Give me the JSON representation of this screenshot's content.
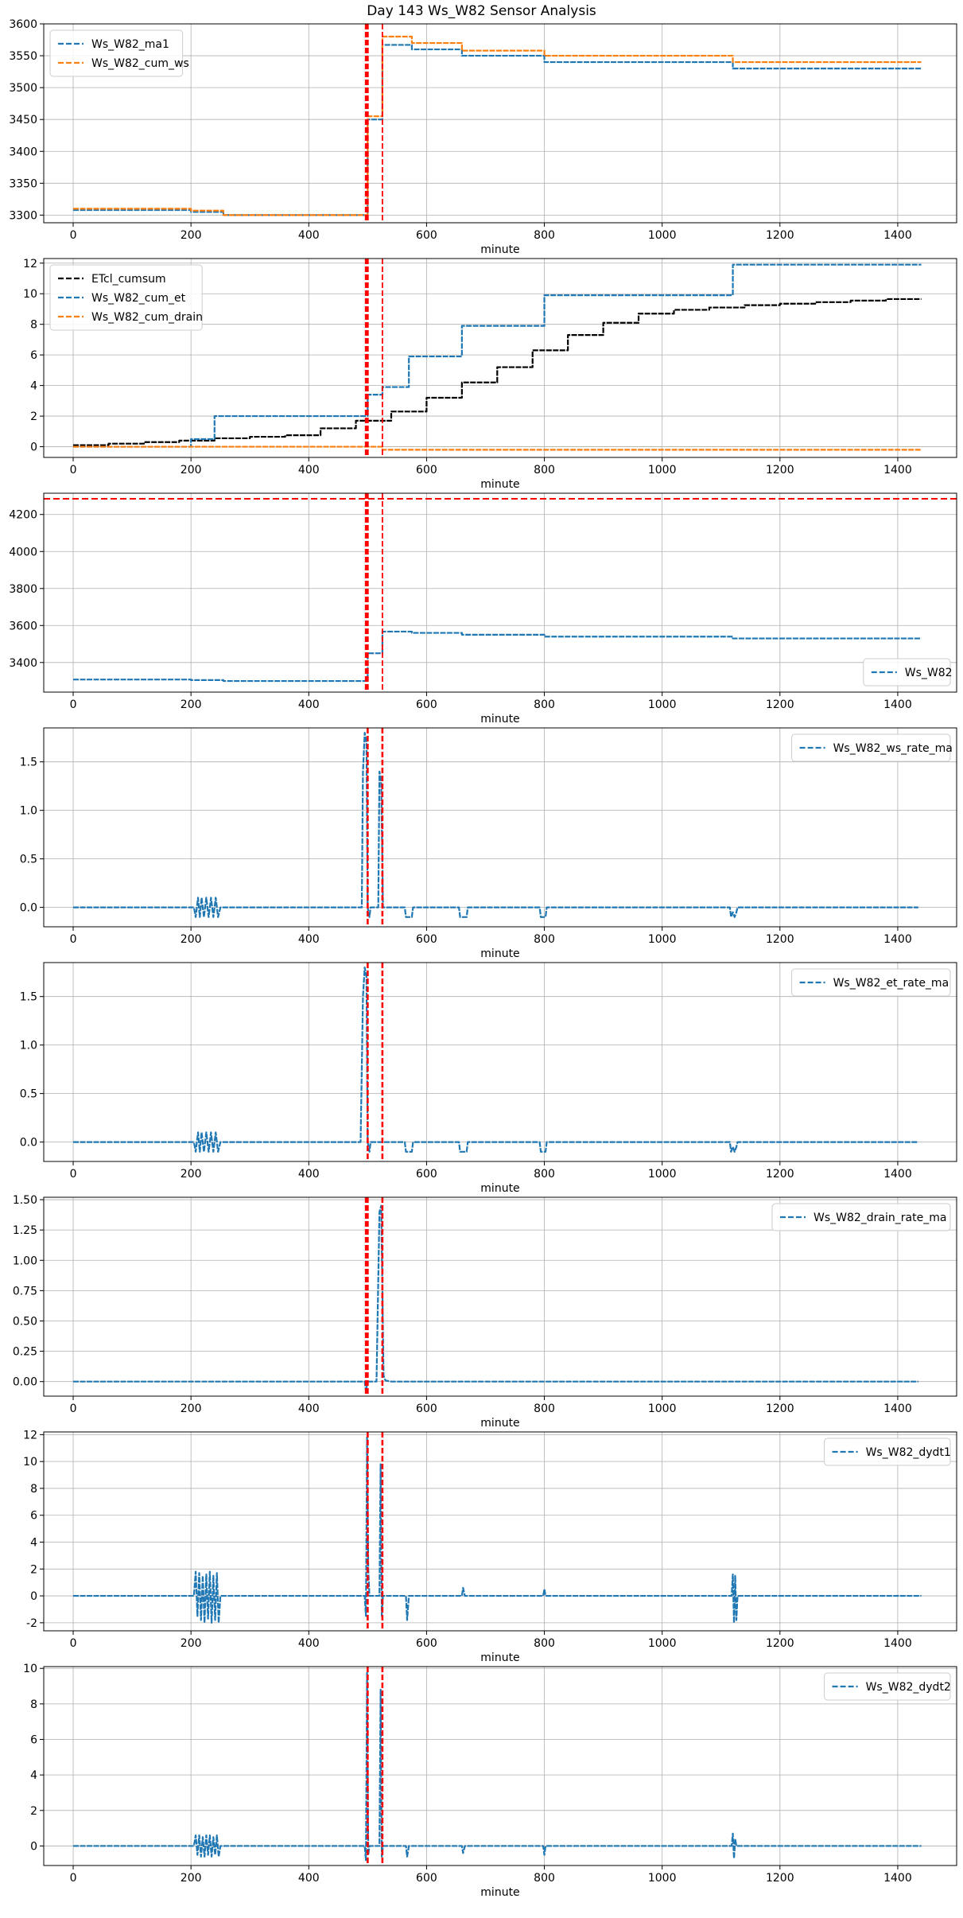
{
  "figure": {
    "title": "Day 143 Ws_W82 Sensor Analysis"
  },
  "colors": {
    "blue": "#1f77b4",
    "orange": "#ff7f0e",
    "black": "#000000",
    "red": "#ff0000",
    "grid": "#b0b0b0"
  },
  "chart_data": [
    {
      "type": "line",
      "xlabel": "minute",
      "ylabel": "",
      "xlim": [
        -50,
        1500
      ],
      "ylim": [
        3288,
        3600
      ],
      "xticks": [
        0,
        200,
        400,
        600,
        800,
        1000,
        1200,
        1400
      ],
      "yticks": [
        3300,
        3350,
        3400,
        3450,
        3500,
        3550,
        3600
      ],
      "grid": true,
      "legend": "upper left",
      "vlines": [
        {
          "x": 497,
          "style": "dashed",
          "width": "thick"
        },
        {
          "x": 500,
          "style": "dashed",
          "width": "thick"
        },
        {
          "x": 525,
          "style": "dashed",
          "width": "thin"
        }
      ],
      "hlines": [],
      "series": [
        {
          "name": "Ws_W82_ma1",
          "color": "blue",
          "kind": "step",
          "x": [
            0,
            200,
            255,
            497,
            500,
            525,
            575,
            660,
            800,
            1120,
            1440
          ],
          "y": [
            3308,
            3305,
            3300,
            3300,
            3450,
            3567,
            3560,
            3550,
            3540,
            3530,
            3530
          ]
        },
        {
          "name": "Ws_W82_cum_ws",
          "color": "orange",
          "kind": "step",
          "x": [
            0,
            200,
            255,
            497,
            500,
            525,
            575,
            660,
            800,
            1120,
            1440
          ],
          "y": [
            3310,
            3307,
            3300,
            3300,
            3455,
            3580,
            3570,
            3558,
            3550,
            3540,
            3540
          ]
        }
      ]
    },
    {
      "type": "line",
      "xlabel": "minute",
      "ylabel": "",
      "xlim": [
        -50,
        1500
      ],
      "ylim": [
        -0.7,
        12.3
      ],
      "xticks": [
        0,
        200,
        400,
        600,
        800,
        1000,
        1200,
        1400
      ],
      "yticks": [
        0,
        2,
        4,
        6,
        8,
        10,
        12
      ],
      "grid": true,
      "legend": "upper left",
      "vlines": [
        {
          "x": 497,
          "style": "dashed",
          "width": "thick"
        },
        {
          "x": 500,
          "style": "dashed",
          "width": "thick"
        },
        {
          "x": 525,
          "style": "dashed",
          "width": "thin"
        }
      ],
      "hlines": [],
      "series": [
        {
          "name": "ETcl_cumsum",
          "color": "black",
          "kind": "step",
          "x": [
            0,
            60,
            120,
            180,
            240,
            300,
            360,
            420,
            480,
            540,
            600,
            660,
            720,
            780,
            840,
            900,
            960,
            1020,
            1080,
            1140,
            1200,
            1260,
            1320,
            1380,
            1440
          ],
          "y": [
            0.1,
            0.2,
            0.3,
            0.4,
            0.55,
            0.65,
            0.75,
            1.2,
            1.7,
            2.3,
            3.2,
            4.2,
            5.2,
            6.3,
            7.3,
            8.1,
            8.7,
            8.95,
            9.1,
            9.25,
            9.35,
            9.45,
            9.55,
            9.65,
            9.65
          ]
        },
        {
          "name": "Ws_W82_cum_et",
          "color": "blue",
          "kind": "step",
          "x": [
            0,
            200,
            240,
            497,
            500,
            525,
            570,
            660,
            800,
            1120,
            1440
          ],
          "y": [
            0,
            0.5,
            2.0,
            2.0,
            3.4,
            3.9,
            5.9,
            7.9,
            9.9,
            11.9,
            11.9
          ]
        },
        {
          "name": "Ws_W82_cum_drain",
          "color": "orange",
          "kind": "step",
          "x": [
            0,
            497,
            525,
            1440
          ],
          "y": [
            0,
            0,
            -0.2,
            -0.2
          ]
        }
      ]
    },
    {
      "type": "line",
      "xlabel": "minute",
      "ylabel": "",
      "xlim": [
        -50,
        1500
      ],
      "ylim": [
        3240,
        4315
      ],
      "xticks": [
        0,
        200,
        400,
        600,
        800,
        1000,
        1200,
        1400
      ],
      "yticks": [
        3400,
        3600,
        3800,
        4000,
        4200
      ],
      "grid": true,
      "legend": "lower right",
      "vlines": [
        {
          "x": 497,
          "style": "dashed",
          "width": "thick"
        },
        {
          "x": 500,
          "style": "dashed",
          "width": "thick"
        },
        {
          "x": 525,
          "style": "dashed",
          "width": "thin"
        }
      ],
      "hlines": [
        {
          "y": 4285,
          "style": "dashed"
        }
      ],
      "series": [
        {
          "name": "Ws_W82",
          "color": "blue",
          "kind": "step",
          "x": [
            0,
            200,
            255,
            497,
            500,
            525,
            575,
            660,
            800,
            1120,
            1440
          ],
          "y": [
            3308,
            3305,
            3300,
            3300,
            3450,
            3567,
            3560,
            3550,
            3540,
            3530,
            3530
          ]
        }
      ]
    },
    {
      "type": "line",
      "xlabel": "minute",
      "ylabel": "",
      "xlim": [
        -50,
        1500
      ],
      "ylim": [
        -0.2,
        1.85
      ],
      "xticks": [
        0,
        200,
        400,
        600,
        800,
        1000,
        1200,
        1400
      ],
      "yticks": [
        0.0,
        0.5,
        1.0,
        1.5
      ],
      "grid": true,
      "legend": "upper right",
      "vlines": [
        {
          "x": 500,
          "style": "dashed",
          "width": "thick"
        },
        {
          "x": 525,
          "style": "dashed",
          "width": "thick"
        }
      ],
      "hlines": [],
      "series": [
        {
          "name": "Ws_W82_ws_rate_ma",
          "color": "blue",
          "kind": "line",
          "x": [
            0,
            205,
            208,
            212,
            215,
            218,
            222,
            226,
            230,
            234,
            238,
            242,
            246,
            250,
            490,
            492,
            495,
            498,
            500,
            503,
            505,
            518,
            520,
            523,
            526,
            528,
            563,
            565,
            575,
            577,
            655,
            657,
            668,
            670,
            792,
            794,
            802,
            804,
            1115,
            1117,
            1120,
            1123,
            1126,
            1128,
            1435
          ],
          "y": [
            0,
            0,
            -0.1,
            0.1,
            -0.1,
            0.1,
            -0.1,
            0.1,
            -0.1,
            0.1,
            -0.1,
            0.1,
            -0.1,
            0,
            0,
            1.4,
            1.8,
            1.7,
            0,
            -0.1,
            0,
            0,
            1.4,
            1.3,
            0,
            0,
            0,
            -0.1,
            -0.1,
            0,
            0,
            -0.1,
            -0.1,
            0,
            0,
            -0.1,
            -0.1,
            0,
            0,
            -0.1,
            -0.05,
            -0.1,
            -0.05,
            0,
            0
          ]
        }
      ]
    },
    {
      "type": "line",
      "xlabel": "minute",
      "ylabel": "",
      "xlim": [
        -50,
        1500
      ],
      "ylim": [
        -0.2,
        1.85
      ],
      "xticks": [
        0,
        200,
        400,
        600,
        800,
        1000,
        1200,
        1400
      ],
      "yticks": [
        0.0,
        0.5,
        1.0,
        1.5
      ],
      "grid": true,
      "legend": "upper right",
      "vlines": [
        {
          "x": 500,
          "style": "dashed",
          "width": "thick"
        },
        {
          "x": 525,
          "style": "dashed",
          "width": "thick"
        }
      ],
      "hlines": [],
      "series": [
        {
          "name": "Ws_W82_et_rate_ma",
          "color": "blue",
          "kind": "line",
          "x": [
            0,
            205,
            208,
            212,
            215,
            218,
            222,
            226,
            230,
            234,
            238,
            242,
            246,
            250,
            488,
            492,
            495,
            498,
            500,
            503,
            505,
            563,
            565,
            575,
            577,
            655,
            657,
            668,
            670,
            792,
            794,
            802,
            804,
            1115,
            1117,
            1120,
            1123,
            1126,
            1128,
            1435
          ],
          "y": [
            0,
            0,
            -0.1,
            0.1,
            -0.1,
            0.1,
            -0.1,
            0.1,
            -0.1,
            0.1,
            -0.1,
            0.1,
            -0.1,
            0,
            0,
            1.5,
            1.8,
            1.7,
            0,
            -0.1,
            0,
            0,
            -0.1,
            -0.1,
            0,
            0,
            -0.1,
            -0.1,
            0,
            0,
            -0.1,
            -0.1,
            0,
            0,
            -0.1,
            -0.05,
            -0.1,
            -0.05,
            0,
            0
          ]
        }
      ]
    },
    {
      "type": "line",
      "xlabel": "minute",
      "ylabel": "",
      "xlim": [
        -50,
        1500
      ],
      "ylim": [
        -0.12,
        1.52
      ],
      "xticks": [
        0,
        200,
        400,
        600,
        800,
        1000,
        1200,
        1400
      ],
      "yticks": [
        0.0,
        0.25,
        0.5,
        0.75,
        1.0,
        1.25,
        1.5
      ],
      "grid": true,
      "legend": "upper right",
      "vlines": [
        {
          "x": 497,
          "style": "dashed",
          "width": "thick"
        },
        {
          "x": 500,
          "style": "dashed",
          "width": "thick"
        },
        {
          "x": 525,
          "style": "dashed",
          "width": "thick"
        }
      ],
      "hlines": [],
      "series": [
        {
          "name": "Ws_W82_drain_rate_ma",
          "color": "blue",
          "kind": "line",
          "x": [
            0,
            495,
            497,
            500,
            505,
            515,
            520,
            523,
            527,
            530,
            540,
            1435
          ],
          "y": [
            0,
            0,
            -0.08,
            0,
            0,
            0,
            1.4,
            1.45,
            0.05,
            0.01,
            0,
            0
          ]
        }
      ]
    },
    {
      "type": "line",
      "xlabel": "minute",
      "ylabel": "",
      "xlim": [
        -50,
        1500
      ],
      "ylim": [
        -2.6,
        12.2
      ],
      "xticks": [
        0,
        200,
        400,
        600,
        800,
        1000,
        1200,
        1400
      ],
      "yticks": [
        -2,
        0,
        2,
        4,
        6,
        8,
        10,
        12
      ],
      "grid": true,
      "legend": "upper right",
      "vlines": [
        {
          "x": 500,
          "style": "dashed",
          "width": "thick"
        },
        {
          "x": 525,
          "style": "dashed",
          "width": "thick"
        }
      ],
      "hlines": [],
      "series": [
        {
          "name": "Ws_W82_dydt1",
          "color": "blue",
          "kind": "line",
          "x": [
            0,
            205,
            208,
            211,
            214,
            217,
            220,
            223,
            226,
            229,
            232,
            235,
            238,
            241,
            244,
            247,
            250,
            495,
            497,
            499,
            501,
            503,
            520,
            522,
            524,
            526,
            565,
            567,
            570,
            660,
            662,
            665,
            798,
            800,
            802,
            1118,
            1120,
            1122,
            1124,
            1126,
            1128,
            1440
          ],
          "y": [
            0,
            0,
            1.8,
            -1.5,
            1.7,
            -1.8,
            1.5,
            -2.0,
            1.6,
            -1.7,
            1.8,
            -2.0,
            1.5,
            -1.8,
            1.7,
            -2.0,
            0,
            0,
            -1.5,
            11.8,
            2.0,
            0,
            0,
            9.8,
            -1.5,
            0,
            0,
            -1.8,
            0,
            0,
            0.6,
            0,
            0,
            0.5,
            0,
            0,
            1.6,
            -2.0,
            1.5,
            -1.8,
            0,
            0
          ]
        }
      ]
    },
    {
      "type": "line",
      "xlabel": "minute",
      "ylabel": "",
      "xlim": [
        -50,
        1500
      ],
      "ylim": [
        -1.1,
        10.1
      ],
      "xticks": [
        0,
        200,
        400,
        600,
        800,
        1000,
        1200,
        1400
      ],
      "yticks": [
        0,
        2,
        4,
        6,
        8,
        10
      ],
      "grid": true,
      "legend": "upper right",
      "vlines": [
        {
          "x": 500,
          "style": "dashed",
          "width": "thick"
        },
        {
          "x": 525,
          "style": "dashed",
          "width": "thick"
        }
      ],
      "hlines": [],
      "series": [
        {
          "name": "Ws_W82_dydt2",
          "color": "blue",
          "kind": "line",
          "x": [
            0,
            205,
            208,
            211,
            214,
            217,
            220,
            223,
            226,
            229,
            232,
            235,
            238,
            241,
            244,
            247,
            250,
            495,
            497,
            499,
            501,
            503,
            520,
            522,
            524,
            526,
            565,
            567,
            570,
            660,
            662,
            665,
            798,
            800,
            802,
            1118,
            1120,
            1122,
            1124,
            1126,
            1440
          ],
          "y": [
            0,
            0,
            0.6,
            -0.5,
            0.6,
            -0.6,
            0.5,
            -0.6,
            0.6,
            -0.5,
            0.6,
            -0.6,
            0.5,
            -0.5,
            0.6,
            -0.6,
            0,
            0,
            -0.8,
            9.8,
            -0.5,
            0,
            0,
            8.8,
            -0.6,
            0,
            0,
            -0.6,
            0,
            0,
            -0.4,
            0,
            0,
            -0.5,
            0,
            0,
            0.7,
            -0.7,
            0.4,
            0,
            0
          ]
        }
      ]
    }
  ]
}
